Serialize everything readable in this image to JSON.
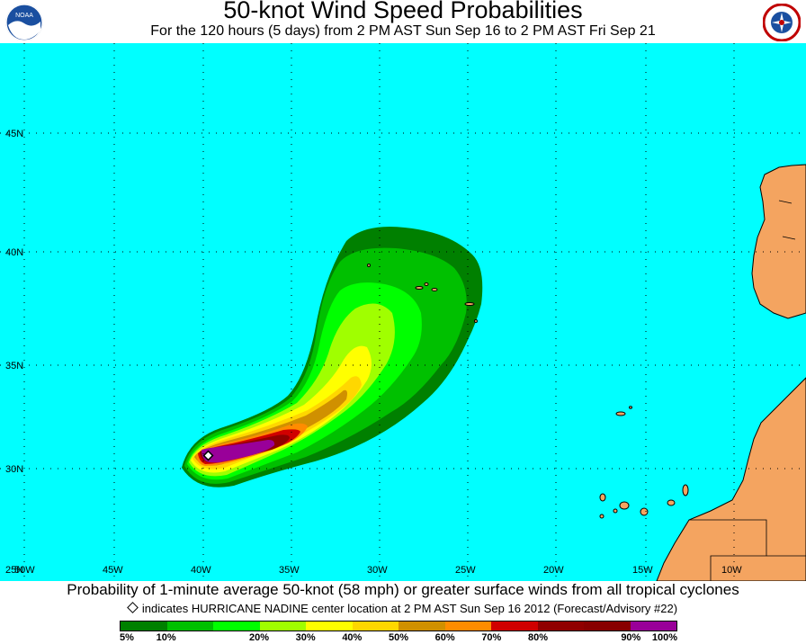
{
  "header": {
    "title": "50-knot Wind Speed Probabilities",
    "subtitle": "For the 120 hours (5 days) from 2 PM AST Sun Sep 16 to 2 PM AST Fri Sep 21",
    "logo_left": "NOAA",
    "logo_right": "NATIONAL WEATHER SERVICE"
  },
  "map": {
    "ocean_color": "#00ffff",
    "land_color": "#f4a460",
    "lat_labels": [
      "45N",
      "40N",
      "35N",
      "30N",
      "25N"
    ],
    "lon_labels": [
      "50W",
      "45W",
      "40W",
      "35W",
      "30W",
      "25W",
      "20W",
      "15W",
      "10W"
    ],
    "storm": "HURRICANE NADINE"
  },
  "footer": {
    "caption": "Probability of 1-minute average 50-knot (58 mph) or greater surface winds from all tropical cyclones",
    "note": "indicates HURRICANE NADINE center location at 2 PM AST Sun Sep 16 2012 (Forecast/Advisory #22)"
  },
  "legend": {
    "colors": [
      "#008000",
      "#00c000",
      "#00ff00",
      "#a0ff00",
      "#ffff00",
      "#ffd700",
      "#d09000",
      "#ff8c00",
      "#d00000",
      "#900000",
      "#880000",
      "#990099"
    ],
    "labels": [
      "5%",
      "10%",
      "20%",
      "30%",
      "40%",
      "50%",
      "60%",
      "70%",
      "80%",
      "90%",
      "100%"
    ]
  }
}
